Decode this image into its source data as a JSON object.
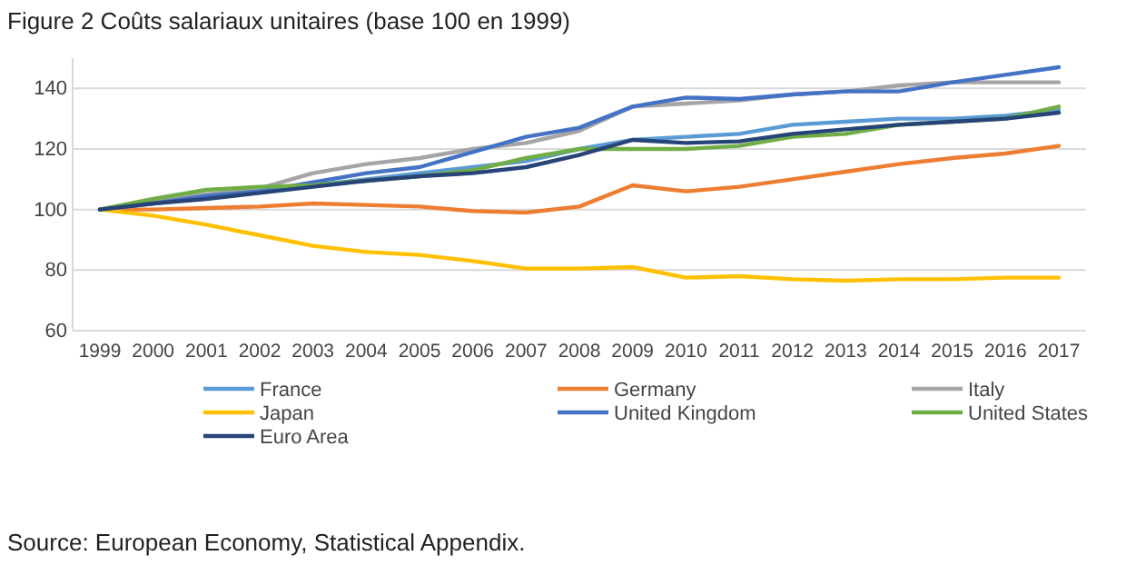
{
  "chart_data": {
    "type": "line",
    "title": "Figure 2 Coûts salariaux unitaires (base 100 en 1999)",
    "categories": [
      "1999",
      "2000",
      "2001",
      "2002",
      "2003",
      "2004",
      "2005",
      "2006",
      "2007",
      "2008",
      "2009",
      "2010",
      "2011",
      "2012",
      "2013",
      "2014",
      "2015",
      "2016",
      "2017"
    ],
    "ylim": [
      60,
      150
    ],
    "yticks": [
      60,
      80,
      100,
      120,
      140
    ],
    "grid": "y",
    "legend": "bottom",
    "line_style": "solid",
    "series": [
      {
        "name": "France",
        "color": "#5b9bd5",
        "values": [
          100,
          102,
          104,
          106,
          108,
          110,
          112,
          114,
          116,
          120,
          123,
          124,
          125,
          128,
          129,
          130,
          130,
          131,
          133
        ]
      },
      {
        "name": "Germany",
        "color": "#ed7d31",
        "values": [
          100,
          100,
          100.5,
          101,
          102,
          101.5,
          101,
          99.5,
          99,
          101,
          108,
          106,
          107.5,
          110,
          112.5,
          115,
          117,
          118.5,
          121
        ]
      },
      {
        "name": "Italy",
        "color": "#a5a5a5",
        "values": [
          100,
          103,
          105,
          107,
          112,
          115,
          117,
          120,
          122,
          126,
          134,
          135,
          136,
          138,
          139,
          141,
          142,
          142,
          142
        ]
      },
      {
        "name": "Japan",
        "color": "#ffc000",
        "values": [
          100,
          98,
          95,
          91.5,
          88,
          86,
          85,
          83,
          80.5,
          80.5,
          81,
          77.5,
          78,
          77,
          76.5,
          77,
          77,
          77.5,
          77.5
        ]
      },
      {
        "name": "United Kingdom",
        "color": "#4472c4",
        "values": [
          100,
          102,
          104.5,
          106,
          109,
          112,
          114,
          119,
          124,
          127,
          134,
          137,
          136.5,
          138,
          139,
          139,
          142,
          144.5,
          147
        ]
      },
      {
        "name": "United States",
        "color": "#70ad47",
        "values": [
          100,
          103.5,
          106.5,
          107.5,
          108,
          109.5,
          111,
          113,
          117,
          120,
          120,
          120,
          121,
          124,
          125,
          128,
          129,
          130,
          134
        ]
      },
      {
        "name": "Euro Area",
        "color": "#264478",
        "values": [
          100,
          102,
          103.5,
          105.5,
          107.5,
          109.5,
          111,
          112,
          114,
          118,
          123,
          122,
          122.5,
          125,
          126.5,
          128,
          129,
          130,
          132
        ]
      }
    ],
    "annotations": [
      "Source: European Economy, Statistical Appendix."
    ]
  }
}
